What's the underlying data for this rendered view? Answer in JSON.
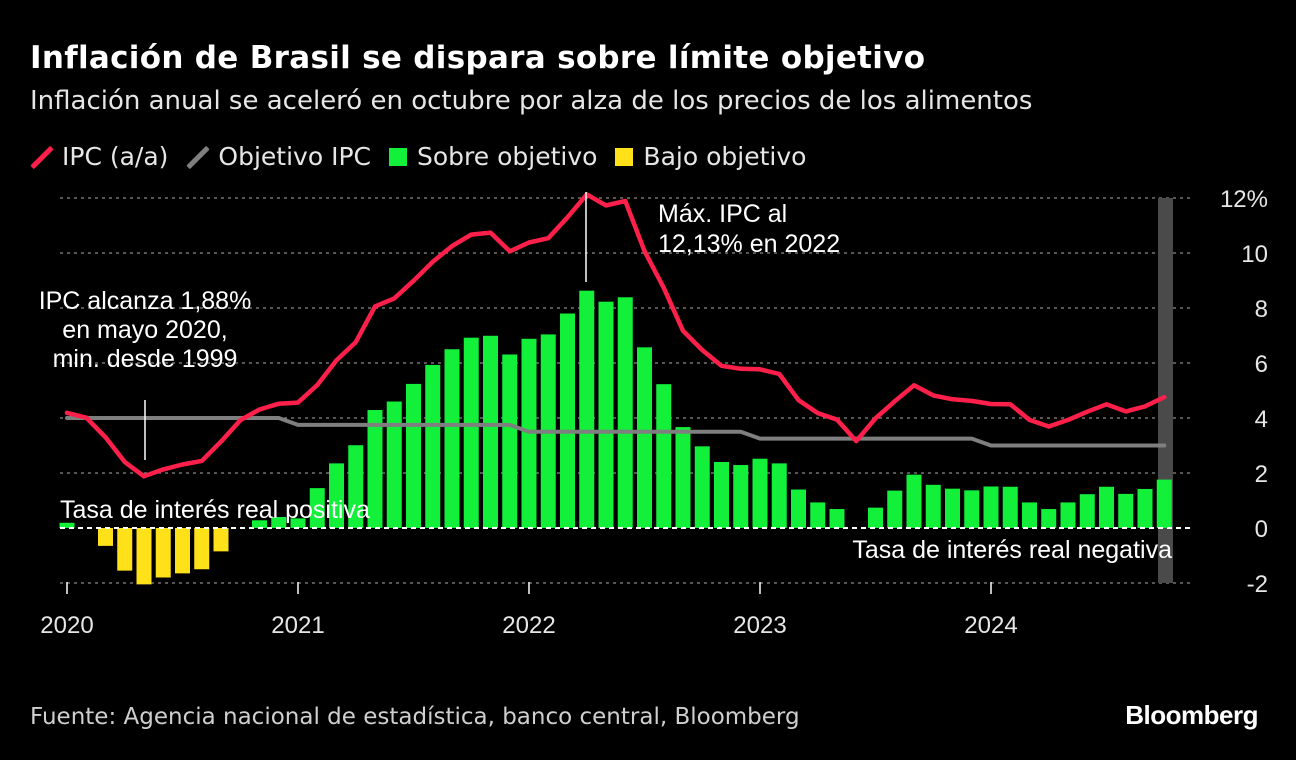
{
  "title": "Inflación de Brasil se dispara sobre límite objetivo",
  "subtitle": "Inflación anual se aceleró en octubre por alza de los precios de los alimentos",
  "legend": [
    {
      "label": "IPC (a/a)",
      "color": "#ff1f4b",
      "kind": "line"
    },
    {
      "label": "Objetivo IPC",
      "color": "#7f7f7f",
      "kind": "line"
    },
    {
      "label": "Sobre objetivo",
      "color": "#12f03a",
      "kind": "box"
    },
    {
      "label": "Bajo objetivo",
      "color": "#ffe11a",
      "kind": "box"
    }
  ],
  "source": "Fuente: Agencia nacional de estadística, banco central, Bloomberg",
  "brand": "Bloomberg",
  "chart_data": {
    "type": "bar",
    "x_start": "2020-01",
    "x_end": "2024-10",
    "y_range": [
      -2,
      12
    ],
    "y_ticks": [
      {
        "value": 12,
        "label": "12%"
      },
      {
        "value": 10,
        "label": "10"
      },
      {
        "value": 8,
        "label": "8"
      },
      {
        "value": 6,
        "label": "6"
      },
      {
        "value": 4,
        "label": "4"
      },
      {
        "value": 2,
        "label": "2"
      },
      {
        "value": 0,
        "label": "0"
      },
      {
        "value": -2,
        "label": "-2"
      }
    ],
    "x_ticks": [
      "2020",
      "2021",
      "2022",
      "2023",
      "2024"
    ],
    "grid": true,
    "axis_position": "right",
    "series": [
      {
        "name": "IPC (a/a)",
        "type": "line",
        "color": "#ff1f4b",
        "values": [
          4.19,
          4.01,
          3.3,
          2.4,
          1.88,
          2.13,
          2.31,
          2.44,
          3.14,
          3.92,
          4.31,
          4.52,
          4.56,
          5.2,
          6.1,
          6.76,
          8.06,
          8.35,
          8.99,
          9.68,
          10.25,
          10.67,
          10.74,
          10.06,
          10.38,
          10.54,
          11.3,
          12.13,
          11.73,
          11.89,
          10.07,
          8.73,
          7.17,
          6.47,
          5.9,
          5.79,
          5.77,
          5.6,
          4.65,
          4.18,
          3.94,
          3.16,
          3.99,
          4.61,
          5.19,
          4.82,
          4.68,
          4.62,
          4.51,
          4.5,
          3.93,
          3.69,
          3.93,
          4.23,
          4.5,
          4.24,
          4.42,
          4.76
        ]
      },
      {
        "name": "Objetivo IPC",
        "type": "line",
        "color": "#7f7f7f",
        "values": [
          4.0,
          4.0,
          4.0,
          4.0,
          4.0,
          4.0,
          4.0,
          4.0,
          4.0,
          4.0,
          4.0,
          4.0,
          3.75,
          3.75,
          3.75,
          3.75,
          3.75,
          3.75,
          3.75,
          3.75,
          3.75,
          3.75,
          3.75,
          3.75,
          3.5,
          3.5,
          3.5,
          3.5,
          3.5,
          3.5,
          3.5,
          3.5,
          3.5,
          3.5,
          3.5,
          3.5,
          3.25,
          3.25,
          3.25,
          3.25,
          3.25,
          3.25,
          3.25,
          3.25,
          3.25,
          3.25,
          3.25,
          3.25,
          3.0,
          3.0,
          3.0,
          3.0,
          3.0,
          3.0,
          3.0,
          3.0,
          3.0,
          3.0
        ]
      },
      {
        "name": "Sobre objetivo",
        "type": "bar",
        "color": "#12f03a",
        "description": "positive values of the spread"
      },
      {
        "name": "Bajo objetivo",
        "type": "bar",
        "color": "#ffe11a",
        "description": "negative values of the spread"
      }
    ],
    "bar_values": [
      0.19,
      0.0,
      -0.65,
      -1.55,
      -2.05,
      -1.8,
      -1.65,
      -1.5,
      -0.85,
      0.0,
      0.28,
      0.4,
      0.35,
      1.45,
      2.35,
      3.01,
      4.29,
      4.6,
      5.24,
      5.93,
      6.5,
      6.92,
      6.99,
      6.31,
      6.88,
      7.04,
      7.8,
      8.63,
      8.23,
      8.39,
      6.57,
      5.23,
      3.67,
      2.97,
      2.4,
      2.29,
      2.52,
      2.35,
      1.4,
      0.93,
      0.69,
      0.0,
      0.74,
      1.36,
      1.94,
      1.57,
      1.43,
      1.37,
      1.51,
      1.5,
      0.93,
      0.69,
      0.93,
      1.23,
      1.5,
      1.24,
      1.42,
      1.76
    ],
    "annotations": [
      {
        "text": [
          "IPC alcanza 1,88%",
          "en mayo 2020,",
          "min. desde 1999"
        ]
      },
      {
        "text": [
          "Máx. IPC al",
          "12,13% en 2022"
        ]
      },
      {
        "text": [
          "Tasa de interés real positiva"
        ]
      },
      {
        "text": [
          "Tasa de interés real negativa"
        ]
      }
    ]
  }
}
